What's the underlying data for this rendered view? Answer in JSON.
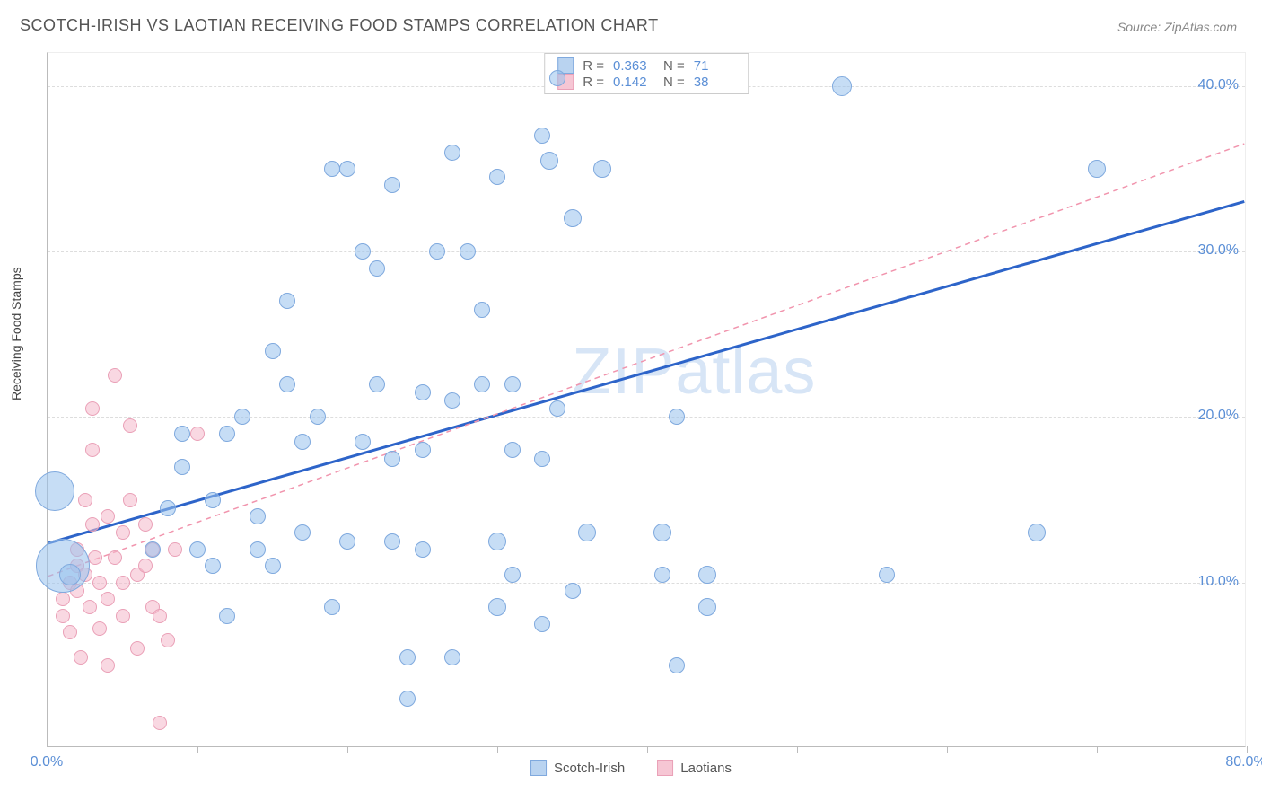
{
  "title": "SCOTCH-IRISH VS LAOTIAN RECEIVING FOOD STAMPS CORRELATION CHART",
  "source": "Source: ZipAtlas.com",
  "ylabel": "Receiving Food Stamps",
  "watermark_a": "ZIP",
  "watermark_b": "atlas",
  "chart": {
    "type": "scatter",
    "xlim": [
      0,
      80
    ],
    "ylim": [
      0,
      42
    ],
    "xticks": [
      0,
      10,
      20,
      30,
      40,
      50,
      60,
      70,
      80
    ],
    "xtick_labels": {
      "0": "0.0%",
      "80": "80.0%"
    },
    "yticks": [
      10,
      20,
      30,
      40
    ],
    "ytick_labels": {
      "10": "10.0%",
      "20": "20.0%",
      "30": "30.0%",
      "40": "40.0%"
    },
    "background_color": "#ffffff",
    "grid_color": "#dddddd",
    "axis_color": "#bbbbbb"
  },
  "series": [
    {
      "name": "Scotch-Irish",
      "swatch_fill": "#b9d3f0",
      "swatch_border": "#7fa9de",
      "point_fill": "rgba(151,193,236,0.55)",
      "point_border": "#7fa9de",
      "trend_color": "#2d64c9",
      "trend_width": 3,
      "trend_dash": "none",
      "R": "0.363",
      "N": "71",
      "trend": {
        "x1": 0,
        "y1": 12.3,
        "x2": 80,
        "y2": 33.0
      },
      "points": [
        {
          "x": 0.5,
          "y": 15.5,
          "r": 22
        },
        {
          "x": 1.0,
          "y": 11.0,
          "r": 30
        },
        {
          "x": 1.5,
          "y": 10.5,
          "r": 12
        },
        {
          "x": 7,
          "y": 12.0,
          "r": 9
        },
        {
          "x": 8,
          "y": 14.5,
          "r": 9
        },
        {
          "x": 9,
          "y": 17.0,
          "r": 9
        },
        {
          "x": 9,
          "y": 19.0,
          "r": 9
        },
        {
          "x": 10,
          "y": 12.0,
          "r": 9
        },
        {
          "x": 11,
          "y": 11.0,
          "r": 9
        },
        {
          "x": 11,
          "y": 15.0,
          "r": 9
        },
        {
          "x": 12,
          "y": 19.0,
          "r": 9
        },
        {
          "x": 12,
          "y": 8.0,
          "r": 9
        },
        {
          "x": 13,
          "y": 20.0,
          "r": 9
        },
        {
          "x": 14,
          "y": 14.0,
          "r": 9
        },
        {
          "x": 14,
          "y": 12.0,
          "r": 9
        },
        {
          "x": 15,
          "y": 24.0,
          "r": 9
        },
        {
          "x": 15,
          "y": 11.0,
          "r": 9
        },
        {
          "x": 16,
          "y": 22.0,
          "r": 9
        },
        {
          "x": 16,
          "y": 27.0,
          "r": 9
        },
        {
          "x": 17,
          "y": 18.5,
          "r": 9
        },
        {
          "x": 17,
          "y": 13.0,
          "r": 9
        },
        {
          "x": 18,
          "y": 20.0,
          "r": 9
        },
        {
          "x": 19,
          "y": 35.0,
          "r": 9
        },
        {
          "x": 19,
          "y": 8.5,
          "r": 9
        },
        {
          "x": 20,
          "y": 12.5,
          "r": 9
        },
        {
          "x": 20,
          "y": 35.0,
          "r": 9
        },
        {
          "x": 21,
          "y": 30.0,
          "r": 9
        },
        {
          "x": 21,
          "y": 18.5,
          "r": 9
        },
        {
          "x": 22,
          "y": 29.0,
          "r": 9
        },
        {
          "x": 22,
          "y": 22.0,
          "r": 9
        },
        {
          "x": 23,
          "y": 34.0,
          "r": 9
        },
        {
          "x": 23,
          "y": 17.5,
          "r": 9
        },
        {
          "x": 23,
          "y": 12.5,
          "r": 9
        },
        {
          "x": 24,
          "y": 5.5,
          "r": 9
        },
        {
          "x": 24,
          "y": 3.0,
          "r": 9
        },
        {
          "x": 25,
          "y": 21.5,
          "r": 9
        },
        {
          "x": 25,
          "y": 12.0,
          "r": 9
        },
        {
          "x": 25,
          "y": 18.0,
          "r": 9
        },
        {
          "x": 26,
          "y": 30.0,
          "r": 9
        },
        {
          "x": 27,
          "y": 36.0,
          "r": 9
        },
        {
          "x": 27,
          "y": 21.0,
          "r": 9
        },
        {
          "x": 27,
          "y": 5.5,
          "r": 9
        },
        {
          "x": 28,
          "y": 30.0,
          "r": 9
        },
        {
          "x": 29,
          "y": 22.0,
          "r": 9
        },
        {
          "x": 29,
          "y": 26.5,
          "r": 9
        },
        {
          "x": 30,
          "y": 34.5,
          "r": 9
        },
        {
          "x": 30,
          "y": 8.5,
          "r": 10
        },
        {
          "x": 30,
          "y": 12.5,
          "r": 10
        },
        {
          "x": 31,
          "y": 18.0,
          "r": 9
        },
        {
          "x": 31,
          "y": 22.0,
          "r": 9
        },
        {
          "x": 31,
          "y": 10.5,
          "r": 9
        },
        {
          "x": 33,
          "y": 37.0,
          "r": 9
        },
        {
          "x": 33,
          "y": 17.5,
          "r": 9
        },
        {
          "x": 33,
          "y": 7.5,
          "r": 9
        },
        {
          "x": 33.5,
          "y": 35.5,
          "r": 10
        },
        {
          "x": 34,
          "y": 20.5,
          "r": 9
        },
        {
          "x": 34,
          "y": 40.5,
          "r": 9
        },
        {
          "x": 35,
          "y": 9.5,
          "r": 9
        },
        {
          "x": 35,
          "y": 32.0,
          "r": 10
        },
        {
          "x": 36,
          "y": 13.0,
          "r": 10
        },
        {
          "x": 37,
          "y": 35.0,
          "r": 10
        },
        {
          "x": 41,
          "y": 13.0,
          "r": 10
        },
        {
          "x": 41,
          "y": 10.5,
          "r": 9
        },
        {
          "x": 42,
          "y": 20.0,
          "r": 9
        },
        {
          "x": 42,
          "y": 5.0,
          "r": 9
        },
        {
          "x": 44,
          "y": 10.5,
          "r": 10
        },
        {
          "x": 44,
          "y": 8.5,
          "r": 10
        },
        {
          "x": 53,
          "y": 40.0,
          "r": 11
        },
        {
          "x": 56,
          "y": 10.5,
          "r": 9
        },
        {
          "x": 66,
          "y": 13.0,
          "r": 10
        },
        {
          "x": 70,
          "y": 35.0,
          "r": 10
        }
      ]
    },
    {
      "name": "Laotians",
      "swatch_fill": "#f6c6d4",
      "swatch_border": "#eaa0b7",
      "point_fill": "rgba(244,184,202,0.55)",
      "point_border": "#eaa0b7",
      "trend_color": "#f194ad",
      "trend_width": 1.5,
      "trend_dash": "6,5",
      "R": "0.142",
      "N": "38",
      "trend": {
        "x1": 0,
        "y1": 10.3,
        "x2": 80,
        "y2": 36.5
      },
      "points": [
        {
          "x": 1.0,
          "y": 9.0,
          "r": 8
        },
        {
          "x": 1.0,
          "y": 8.0,
          "r": 8
        },
        {
          "x": 1.5,
          "y": 10.0,
          "r": 8
        },
        {
          "x": 1.5,
          "y": 7.0,
          "r": 8
        },
        {
          "x": 2.0,
          "y": 12.0,
          "r": 8
        },
        {
          "x": 2.0,
          "y": 11.0,
          "r": 8
        },
        {
          "x": 2.0,
          "y": 9.5,
          "r": 8
        },
        {
          "x": 2.2,
          "y": 5.5,
          "r": 8
        },
        {
          "x": 2.5,
          "y": 15.0,
          "r": 8
        },
        {
          "x": 2.5,
          "y": 10.5,
          "r": 8
        },
        {
          "x": 2.8,
          "y": 8.5,
          "r": 8
        },
        {
          "x": 3.0,
          "y": 20.5,
          "r": 8
        },
        {
          "x": 3.0,
          "y": 18.0,
          "r": 8
        },
        {
          "x": 3.0,
          "y": 13.5,
          "r": 8
        },
        {
          "x": 3.2,
          "y": 11.5,
          "r": 8
        },
        {
          "x": 3.5,
          "y": 7.2,
          "r": 8
        },
        {
          "x": 3.5,
          "y": 10.0,
          "r": 8
        },
        {
          "x": 4.0,
          "y": 14.0,
          "r": 8
        },
        {
          "x": 4.0,
          "y": 9.0,
          "r": 8
        },
        {
          "x": 4.0,
          "y": 5.0,
          "r": 8
        },
        {
          "x": 4.5,
          "y": 11.5,
          "r": 8
        },
        {
          "x": 4.5,
          "y": 22.5,
          "r": 8
        },
        {
          "x": 5.0,
          "y": 13.0,
          "r": 8
        },
        {
          "x": 5.0,
          "y": 8.0,
          "r": 8
        },
        {
          "x": 5.0,
          "y": 10.0,
          "r": 8
        },
        {
          "x": 5.5,
          "y": 15.0,
          "r": 8
        },
        {
          "x": 5.5,
          "y": 19.5,
          "r": 8
        },
        {
          "x": 6.0,
          "y": 10.5,
          "r": 8
        },
        {
          "x": 6.0,
          "y": 6.0,
          "r": 8
        },
        {
          "x": 6.5,
          "y": 13.5,
          "r": 8
        },
        {
          "x": 6.5,
          "y": 11.0,
          "r": 8
        },
        {
          "x": 7.0,
          "y": 8.5,
          "r": 8
        },
        {
          "x": 7.0,
          "y": 12.0,
          "r": 8
        },
        {
          "x": 7.5,
          "y": 8.0,
          "r": 8
        },
        {
          "x": 7.5,
          "y": 1.5,
          "r": 8
        },
        {
          "x": 8.0,
          "y": 6.5,
          "r": 8
        },
        {
          "x": 8.5,
          "y": 12.0,
          "r": 8
        },
        {
          "x": 10.0,
          "y": 19.0,
          "r": 8
        }
      ]
    }
  ],
  "legend_bottom": [
    {
      "label": "Scotch-Irish",
      "fill": "#b9d3f0",
      "border": "#7fa9de"
    },
    {
      "label": "Laotians",
      "fill": "#f6c6d4",
      "border": "#eaa0b7"
    }
  ]
}
